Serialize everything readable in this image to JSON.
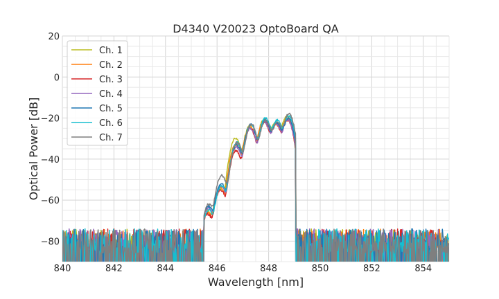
{
  "chart_data": {
    "type": "line",
    "title": "D4340 V20023 OptoBoard QA",
    "xlabel": "Wavelength [nm]",
    "ylabel": "Optical Power [dB]",
    "xlim": [
      840,
      855
    ],
    "ylim": [
      -90,
      20
    ],
    "xticks": [
      840,
      842,
      844,
      846,
      848,
      850,
      852,
      854
    ],
    "yticks": [
      -80,
      -60,
      -40,
      -20,
      0,
      20
    ],
    "xtick_labels": [
      "840",
      "842",
      "844",
      "846",
      "848",
      "850",
      "852",
      "854"
    ],
    "ytick_labels": [
      "−80",
      "−60",
      "−40",
      "−20",
      "0",
      "20"
    ],
    "grid": true,
    "legend_position": "top-left",
    "noise_floor_db": -80,
    "peaks": [
      {
        "x": 845.65,
        "values_db": [
          -65,
          -66,
          -67,
          -64,
          -63,
          -65,
          -62
        ]
      },
      {
        "x": 846.15,
        "values_db": [
          -54,
          -54,
          -55,
          -53,
          -52,
          -53,
          -48
        ]
      },
      {
        "x": 846.75,
        "values_db": [
          -30,
          -33,
          -36,
          -34,
          -33,
          -32,
          -32
        ]
      },
      {
        "x": 847.3,
        "values_db": [
          -24,
          -24,
          -25,
          -25,
          -23,
          -23,
          -23
        ]
      },
      {
        "x": 847.85,
        "values_db": [
          -21,
          -21,
          -22,
          -22,
          -21,
          -20,
          -21
        ]
      },
      {
        "x": 848.3,
        "values_db": [
          -22,
          -23,
          -23,
          -23,
          -22,
          -21,
          -22
        ]
      },
      {
        "x": 848.75,
        "values_db": [
          -19,
          -20,
          -21,
          -21,
          -20,
          -19,
          -18
        ]
      }
    ],
    "series": [
      {
        "name": "Ch. 1",
        "color": "#bcbd22"
      },
      {
        "name": "Ch. 2",
        "color": "#ff7f0e"
      },
      {
        "name": "Ch. 3",
        "color": "#d62728"
      },
      {
        "name": "Ch. 4",
        "color": "#9467bd"
      },
      {
        "name": "Ch. 5",
        "color": "#1f77b4"
      },
      {
        "name": "Ch. 6",
        "color": "#17becf"
      },
      {
        "name": "Ch. 7",
        "color": "#7f7f7f"
      }
    ]
  }
}
